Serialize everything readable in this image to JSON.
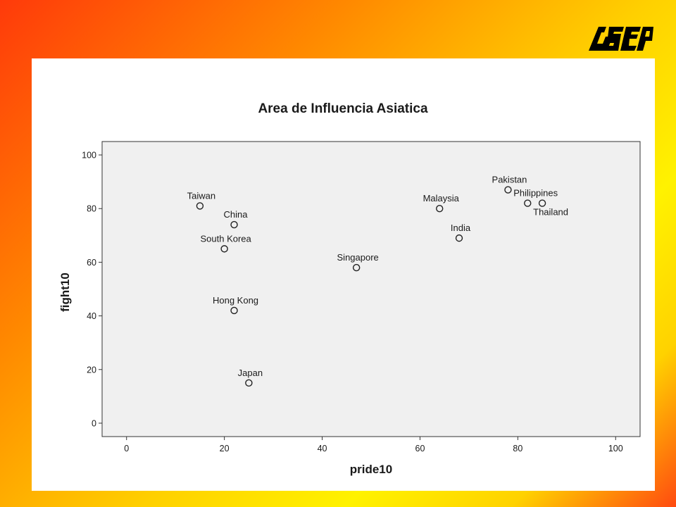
{
  "logo_text": "ASEP",
  "chart_data": {
    "type": "scatter",
    "title": "Area de Influencia Asiatica",
    "xlabel": "pride10",
    "ylabel": "fight10",
    "xlim": [
      -5,
      105
    ],
    "ylim": [
      -5,
      105
    ],
    "xticks": [
      0,
      20,
      40,
      60,
      80,
      100
    ],
    "yticks": [
      0,
      20,
      40,
      60,
      80,
      100
    ],
    "grid": false,
    "points": [
      {
        "label": "Taiwan",
        "x": 15,
        "y": 81
      },
      {
        "label": "China",
        "x": 22,
        "y": 74
      },
      {
        "label": "South Korea",
        "x": 20,
        "y": 65
      },
      {
        "label": "Hong Kong",
        "x": 22,
        "y": 42
      },
      {
        "label": "Japan",
        "x": 25,
        "y": 15
      },
      {
        "label": "Singapore",
        "x": 47,
        "y": 58
      },
      {
        "label": "Malaysia",
        "x": 64,
        "y": 80
      },
      {
        "label": "India",
        "x": 68,
        "y": 69
      },
      {
        "label": "Pakistan",
        "x": 78,
        "y": 87
      },
      {
        "label": "Philippines",
        "x": 82,
        "y": 82
      },
      {
        "label": "Thailand",
        "x": 85,
        "y": 82
      }
    ]
  }
}
